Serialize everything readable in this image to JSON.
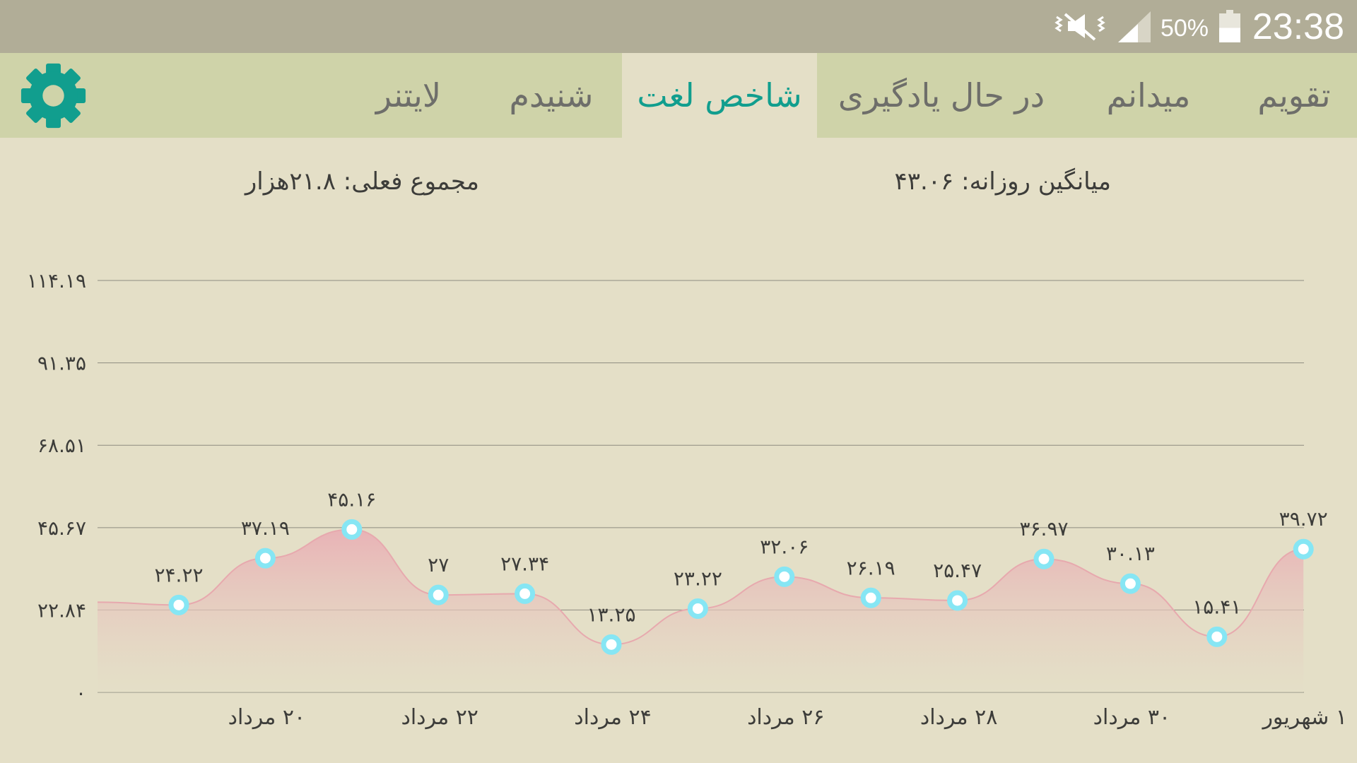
{
  "status_bar": {
    "time": "23:38",
    "battery_percent": "50%",
    "battery_level": 0.5,
    "icons": [
      "mute-vibrate-icon",
      "signal-icon",
      "battery-icon"
    ]
  },
  "tabs": [
    {
      "label": "تقویم",
      "active": false
    },
    {
      "label": "میدانم",
      "active": false
    },
    {
      "label": "در حال یادگیری",
      "active": false
    },
    {
      "label": "شاخص لغت",
      "active": true
    },
    {
      "label": "شنیدم",
      "active": false
    },
    {
      "label": "لایتنر",
      "active": false
    }
  ],
  "settings_icon": "gear-icon",
  "summary": {
    "daily_average": "میانگین روزانه: ۴۳.۰۶",
    "current_total": "مجموع فعلی: ۲۱.۸هزار"
  },
  "colors": {
    "accent": "#119e8e",
    "area_fill": "#e9b2b6",
    "line": "#e7a9ae",
    "point": "#86e6f4"
  },
  "chart_data": {
    "type": "area",
    "y_tick_labels": [
      "۰",
      "۲۲.۸۴",
      "۴۵.۶۷",
      "۶۸.۵۱",
      "۹۱.۳۵",
      "۱۱۴.۱۹"
    ],
    "y_ticks": [
      0,
      22.84,
      45.67,
      68.51,
      91.35,
      114.19
    ],
    "ylim": [
      0,
      114.19
    ],
    "x_tick_labels": [
      {
        "day": 1,
        "label": "۲۰ مرداد"
      },
      {
        "day": 3,
        "label": "۲۲ مرداد"
      },
      {
        "day": 5,
        "label": "۲۴ مرداد"
      },
      {
        "day": 7,
        "label": "۲۶ مرداد"
      },
      {
        "day": 9,
        "label": "۲۸ مرداد"
      },
      {
        "day": 11,
        "label": "۳۰ مرداد"
      },
      {
        "day": 13,
        "label": "۱ شهریور"
      }
    ],
    "leading_value": 25,
    "points": [
      {
        "day": 0,
        "value": 24.22,
        "label": "۲۴.۲۲"
      },
      {
        "day": 1,
        "value": 37.19,
        "label": "۳۷.۱۹"
      },
      {
        "day": 2,
        "value": 45.16,
        "label": "۴۵.۱۶"
      },
      {
        "day": 3,
        "value": 27,
        "label": "۲۷"
      },
      {
        "day": 4,
        "value": 27.34,
        "label": "۲۷.۳۴"
      },
      {
        "day": 5,
        "value": 13.25,
        "label": "۱۳.۲۵"
      },
      {
        "day": 6,
        "value": 23.22,
        "label": "۲۳.۲۲"
      },
      {
        "day": 7,
        "value": 32.06,
        "label": "۳۲.۰۶"
      },
      {
        "day": 8,
        "value": 26.19,
        "label": "۲۶.۱۹"
      },
      {
        "day": 9,
        "value": 25.47,
        "label": "۲۵.۴۷"
      },
      {
        "day": 10,
        "value": 36.97,
        "label": "۳۶.۹۷"
      },
      {
        "day": 11,
        "value": 30.13,
        "label": "۳۰.۱۳"
      },
      {
        "day": 12,
        "value": 15.41,
        "label": "۱۵.۴۱"
      },
      {
        "day": 13,
        "value": 39.72,
        "label": "۳۹.۷۲"
      }
    ],
    "grid": true,
    "legend": "none"
  }
}
